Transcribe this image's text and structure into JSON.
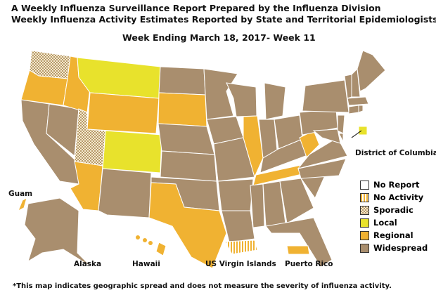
{
  "title": "A Weekly Influenza Surveillance Report Prepared by the Influenza Division",
  "subtitle": "Weekly Influenza Activity Estimates Reported by State and Territorial Epidemiologists*",
  "week": "Week Ending March 18, 2017- Week 11",
  "footnote": "*This map indicates geographic spread and does not measure the severity of influenza activity.",
  "colors": {
    "no_report": "#ffffff",
    "no_activity": "#f2c870",
    "sporadic": "#e0d0a0",
    "local": "#e8e22c",
    "regional": "#f0b232",
    "widespread": "#a98e6e"
  },
  "legend": [
    {
      "key": "no_report",
      "label": "No Report"
    },
    {
      "key": "no_activity",
      "label": "No Activity"
    },
    {
      "key": "sporadic",
      "label": "Sporadic"
    },
    {
      "key": "local",
      "label": "Local"
    },
    {
      "key": "regional",
      "label": "Regional"
    },
    {
      "key": "widespread",
      "label": "Widespread"
    }
  ],
  "labels": {
    "guam": "Guam",
    "alaska": "Alaska",
    "hawaii": "Hawaii",
    "usvi": "US Virgin Islands",
    "pr": "Puerto Rico",
    "dc": "District of Columbia"
  },
  "states": {
    "WA": "sporadic",
    "OR": "regional",
    "CA": "widespread",
    "NV": "widespread",
    "ID": "regional",
    "MT": "local",
    "WY": "regional",
    "UT": "sporadic",
    "AZ": "regional",
    "CO": "local",
    "NM": "widespread",
    "ND": "widespread",
    "SD": "regional",
    "NE": "widespread",
    "KS": "widespread",
    "OK": "widespread",
    "TX": "regional",
    "MN": "widespread",
    "IA": "widespread",
    "MO": "widespread",
    "AR": "widespread",
    "LA": "widespread",
    "WI": "widespread",
    "IL": "regional",
    "MI": "widespread",
    "IN": "widespread",
    "OH": "widespread",
    "KY": "widespread",
    "TN": "regional",
    "MS": "widespread",
    "AL": "widespread",
    "GA": "widespread",
    "FL": "widespread",
    "SC": "widespread",
    "NC": "widespread",
    "VA": "widespread",
    "WV": "regional",
    "PA": "widespread",
    "NY": "widespread",
    "NJ": "widespread",
    "DE": "widespread",
    "MD": "widespread",
    "CT": "widespread",
    "RI": "widespread",
    "MA": "widespread",
    "VT": "widespread",
    "NH": "widespread",
    "ME": "widespread",
    "DC": "local",
    "AK": "widespread",
    "HI": "regional",
    "GU": "regional",
    "VI": "no_activity",
    "PR": "regional"
  }
}
